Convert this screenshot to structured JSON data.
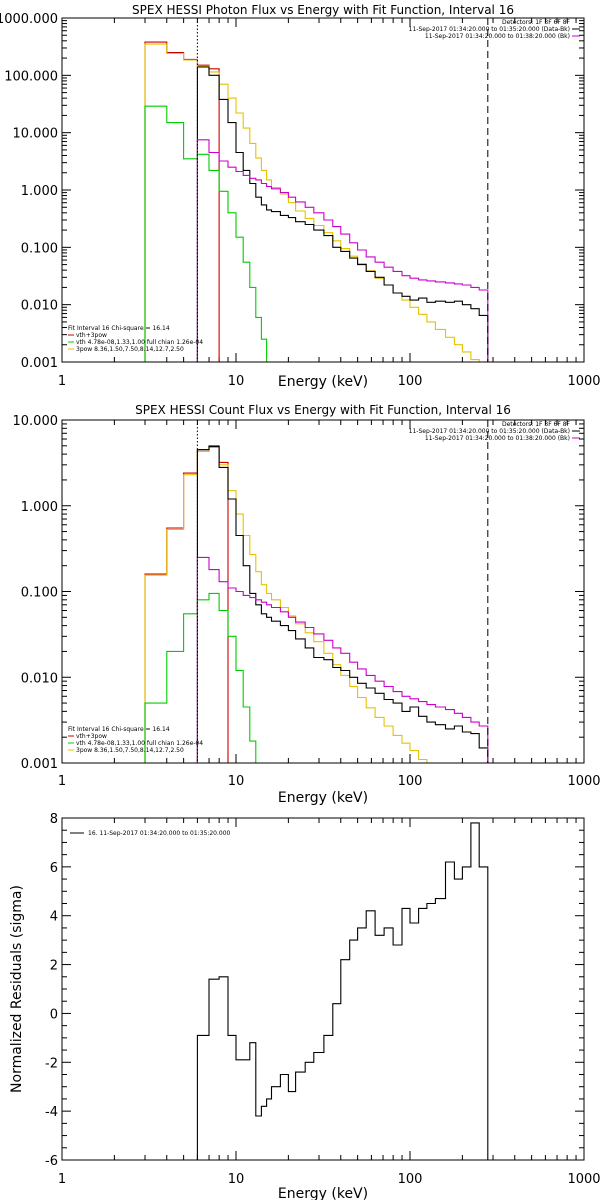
{
  "chart_data": [
    {
      "type": "line",
      "title": "SPEX HESSI Photon Flux vs Energy with Fit Function, Interval 16",
      "xlabel": "Energy (keV)",
      "ylabel": "",
      "xscale": "log",
      "yscale": "log",
      "xlim": [
        1,
        1000
      ],
      "ylim": [
        0.001,
        1000
      ],
      "xticks": [
        "1",
        "10",
        "100",
        "1000"
      ],
      "yticks": [
        "1000.000",
        "100.000",
        "10.000",
        "1.000",
        "0.100",
        "0.010",
        "0.001"
      ],
      "ytick_values": [
        1000,
        100,
        10,
        1,
        0.1,
        0.01,
        0.001
      ],
      "vlines": [
        {
          "x": 6,
          "style": "dotted"
        },
        {
          "x": 280,
          "style": "dashed"
        }
      ],
      "legend_top_right": [
        {
          "text": "Detectors: 1F 3F 6F 8F",
          "color": "#000000"
        },
        {
          "text": "11-Sep-2017 01:34:20.000 to 01:35:20.000 (Data-Bk)",
          "color": "#000000"
        },
        {
          "text": "11-Sep-2017 01:34:20.000 to 01:38:20.000 (Bk)",
          "color": "#cc00cc"
        }
      ],
      "legend_bottom_left": [
        {
          "text": "Fit Interval 16   Chi-square = 16.14",
          "color": "#000000"
        },
        {
          "text": "vth+3pow",
          "color": "#cc0000"
        },
        {
          "text": "vth 4.78e-08,1.33,1.00   full chian 1.26e-04",
          "color": "#00cc00"
        },
        {
          "text": "3pow 8.36,1.50,7.50,8.14,12.7,2.50",
          "color": "#e6c200"
        }
      ],
      "series": [
        {
          "name": "vth+3pow",
          "color": "#cc0000",
          "edges": [
            3,
            4,
            5,
            6,
            7,
            8
          ],
          "values": [
            380,
            250,
            190,
            150,
            130
          ]
        },
        {
          "name": "3pow 8.36,1.50,7.50,8.14,12.7,2.50",
          "color": "#e6c200",
          "edges": [
            3,
            4,
            5,
            6,
            7,
            8,
            9,
            10,
            11,
            12,
            13,
            14,
            15,
            16,
            18,
            20,
            22,
            25,
            28,
            32,
            36,
            40,
            45,
            50,
            56,
            63,
            71,
            80,
            90,
            100,
            112,
            125,
            140,
            160,
            180,
            200,
            224,
            250,
            280
          ],
          "values": [
            350,
            240,
            185,
            145,
            115,
            70,
            40,
            22,
            12,
            6.5,
            3.6,
            2.2,
            1.5,
            1.1,
            0.85,
            0.6,
            0.43,
            0.32,
            0.24,
            0.18,
            0.13,
            0.095,
            0.07,
            0.052,
            0.039,
            0.029,
            0.022,
            0.016,
            0.012,
            0.009,
            0.0068,
            0.005,
            0.0037,
            0.0027,
            0.002,
            0.0015,
            0.0011,
            0.0008
          ]
        },
        {
          "name": "vth 4.78e-08,1.33,1.00",
          "color": "#00cc00",
          "edges": [
            3,
            4,
            5,
            6,
            7,
            8,
            9,
            10,
            11,
            12,
            13,
            14,
            15
          ],
          "values": [
            29,
            15,
            3.5,
            4.2,
            2.2,
            0.95,
            0.4,
            0.15,
            0.055,
            0.02,
            0.006,
            0.0025
          ]
        },
        {
          "name": "11-Sep-2017 01:34:20.000 to 01:35:20.000 (Data-Bk)",
          "color": "#000000",
          "edges": [
            6,
            7,
            8,
            9,
            10,
            11,
            12,
            13,
            14,
            15,
            16,
            18,
            20,
            22,
            25,
            28,
            32,
            36,
            40,
            45,
            50,
            56,
            63,
            71,
            80,
            90,
            100,
            112,
            125,
            140,
            160,
            180,
            200,
            224,
            250,
            280
          ],
          "values": [
            140,
            100,
            38,
            15,
            4.5,
            2.2,
            1.3,
            0.75,
            0.55,
            0.45,
            0.42,
            0.36,
            0.33,
            0.28,
            0.25,
            0.2,
            0.16,
            0.1,
            0.085,
            0.065,
            0.05,
            0.038,
            0.03,
            0.022,
            0.016,
            0.014,
            0.012,
            0.013,
            0.011,
            0.0115,
            0.011,
            0.0115,
            0.01,
            0.0085,
            0.0065
          ]
        },
        {
          "name": "11-Sep-2017 01:34:20.000 to 01:38:20.000 (Bk)",
          "color": "#cc00cc",
          "edges": [
            6,
            7,
            8,
            9,
            10,
            11,
            12,
            13,
            14,
            15,
            16,
            18,
            20,
            22,
            25,
            28,
            32,
            36,
            40,
            45,
            50,
            56,
            63,
            71,
            80,
            90,
            100,
            112,
            125,
            140,
            160,
            180,
            200,
            224,
            250,
            280
          ],
          "values": [
            7.5,
            4.5,
            3.2,
            2.5,
            2.1,
            1.8,
            1.6,
            1.5,
            1.3,
            1.15,
            1.05,
            0.9,
            0.75,
            0.62,
            0.5,
            0.4,
            0.3,
            0.23,
            0.17,
            0.12,
            0.09,
            0.068,
            0.055,
            0.045,
            0.038,
            0.032,
            0.029,
            0.027,
            0.026,
            0.025,
            0.024,
            0.023,
            0.022,
            0.02,
            0.018
          ]
        }
      ]
    },
    {
      "type": "line",
      "title": "SPEX HESSI Count Flux vs Energy with Fit Function, Interval 16",
      "xlabel": "Energy (keV)",
      "ylabel": "",
      "xscale": "log",
      "yscale": "log",
      "xlim": [
        1,
        1000
      ],
      "ylim": [
        0.001,
        10
      ],
      "xticks": [
        "1",
        "10",
        "100",
        "1000"
      ],
      "yticks": [
        "10.000",
        "1.000",
        "0.100",
        "0.010",
        "0.001"
      ],
      "ytick_values": [
        10,
        1,
        0.1,
        0.01,
        0.001
      ],
      "vlines": [
        {
          "x": 6,
          "style": "dotted"
        },
        {
          "x": 280,
          "style": "dashed"
        }
      ],
      "legend_top_right": [
        {
          "text": "Detectors: 1F 3F 6F 8F",
          "color": "#000000"
        },
        {
          "text": "11-Sep-2017 01:34:20.000 to 01:35:20.000 (Data-Bk)",
          "color": "#000000"
        },
        {
          "text": "11-Sep-2017 01:34:20.000 to 01:38:20.000 (Bk)",
          "color": "#cc00cc"
        }
      ],
      "legend_bottom_left": [
        {
          "text": "Fit Interval 16   Chi-square = 16.14",
          "color": "#000000"
        },
        {
          "text": "vth+3pow",
          "color": "#cc0000"
        },
        {
          "text": "vth 4.78e-08,1.33,1.00   full chian 1.26e-04",
          "color": "#00cc00"
        },
        {
          "text": "3pow 8.36,1.50,7.50,8.14,12.7,2.50",
          "color": "#e6c200"
        }
      ],
      "series": [
        {
          "name": "vth+3pow",
          "color": "#cc0000",
          "edges": [
            3,
            4,
            5,
            6,
            7,
            8,
            9
          ],
          "values": [
            0.16,
            0.55,
            2.4,
            4.5,
            5.0,
            3.2
          ]
        },
        {
          "name": "3pow 8.36,1.50,7.50,8.14,12.7,2.50",
          "color": "#e6c200",
          "edges": [
            3,
            4,
            5,
            6,
            7,
            8,
            9,
            10,
            11,
            12,
            13,
            14,
            15,
            16,
            18,
            20,
            22,
            25,
            28,
            32,
            36,
            40,
            45,
            50,
            56,
            63,
            71,
            80,
            90,
            100,
            112,
            125,
            140
          ],
          "values": [
            0.155,
            0.53,
            2.3,
            4.3,
            4.8,
            3.0,
            1.5,
            0.8,
            0.45,
            0.27,
            0.17,
            0.12,
            0.095,
            0.08,
            0.065,
            0.052,
            0.042,
            0.033,
            0.026,
            0.019,
            0.014,
            0.0105,
            0.0078,
            0.0058,
            0.0044,
            0.0034,
            0.0027,
            0.0021,
            0.0017,
            0.0014,
            0.0011,
            0.00095
          ]
        },
        {
          "name": "vth 4.78e-08,1.33,1.00",
          "color": "#00cc00",
          "edges": [
            3,
            4,
            5,
            6,
            7,
            8,
            9,
            10,
            11,
            12,
            13,
            14
          ],
          "values": [
            0.005,
            0.02,
            0.055,
            0.08,
            0.095,
            0.06,
            0.03,
            0.012,
            0.0045,
            0.0018,
            0.0008
          ]
        },
        {
          "name": "11-Sep-2017 01:34:20.000 to 01:35:20.000 (Data-Bk)",
          "color": "#000000",
          "edges": [
            6,
            7,
            8,
            9,
            10,
            11,
            12,
            13,
            14,
            15,
            16,
            18,
            20,
            22,
            25,
            28,
            32,
            36,
            40,
            45,
            50,
            56,
            63,
            71,
            80,
            90,
            100,
            112,
            125,
            140,
            160,
            180,
            200,
            224,
            250,
            280
          ],
          "values": [
            4.5,
            4.9,
            2.8,
            1.2,
            0.45,
            0.2,
            0.095,
            0.07,
            0.055,
            0.05,
            0.045,
            0.04,
            0.035,
            0.028,
            0.022,
            0.017,
            0.016,
            0.013,
            0.012,
            0.01,
            0.0085,
            0.0075,
            0.0065,
            0.0055,
            0.005,
            0.004,
            0.0045,
            0.0035,
            0.003,
            0.0028,
            0.0025,
            0.0027,
            0.0023,
            0.0022,
            0.0015
          ]
        },
        {
          "name": "11-Sep-2017 01:34:20.000 to 01:38:20.000 (Bk)",
          "color": "#cc00cc",
          "edges": [
            6,
            7,
            8,
            9,
            10,
            11,
            12,
            13,
            14,
            15,
            16,
            18,
            20,
            22,
            25,
            28,
            32,
            36,
            40,
            45,
            50,
            56,
            63,
            71,
            80,
            90,
            100,
            112,
            125,
            140,
            160,
            180,
            200,
            224,
            250,
            280
          ],
          "values": [
            0.25,
            0.18,
            0.13,
            0.11,
            0.1,
            0.09,
            0.085,
            0.08,
            0.075,
            0.07,
            0.065,
            0.058,
            0.05,
            0.044,
            0.038,
            0.032,
            0.027,
            0.022,
            0.019,
            0.015,
            0.0125,
            0.0105,
            0.009,
            0.0078,
            0.0068,
            0.006,
            0.0056,
            0.0052,
            0.0048,
            0.0045,
            0.0042,
            0.0038,
            0.0034,
            0.003,
            0.0027
          ]
        }
      ]
    },
    {
      "type": "line",
      "title": "",
      "xlabel": "Energy (keV)",
      "ylabel": "Normalized Residuals (sigma)",
      "xscale": "log",
      "yscale": "linear",
      "xlim": [
        1,
        1000
      ],
      "ylim": [
        -6,
        8
      ],
      "xticks": [
        "1",
        "10",
        "100",
        "1000"
      ],
      "yticks": [
        "8",
        "6",
        "4",
        "2",
        "0",
        "-2",
        "-4",
        "-6"
      ],
      "ytick_values": [
        8,
        6,
        4,
        2,
        0,
        -2,
        -4,
        -6
      ],
      "legend_top_left": [
        {
          "text": "16. 11-Sep-2017 01:34:20.000 to 01:35:20.000",
          "color": "#000000"
        }
      ],
      "series": [
        {
          "name": "16. 11-Sep-2017 01:34:20.000 to 01:35:20.000",
          "color": "#000000",
          "edges": [
            6,
            7,
            8,
            9,
            10,
            11,
            12,
            13,
            14,
            15,
            16,
            18,
            20,
            22,
            25,
            28,
            32,
            36,
            40,
            45,
            50,
            56,
            63,
            71,
            80,
            90,
            100,
            112,
            125,
            140,
            160,
            180,
            200,
            224,
            250,
            280
          ],
          "values": [
            -0.9,
            1.4,
            1.5,
            -0.9,
            -1.9,
            -1.9,
            -1.2,
            -4.2,
            -3.8,
            -3.5,
            -3.0,
            -2.5,
            -3.2,
            -2.4,
            -2.0,
            -1.6,
            -0.9,
            0.4,
            2.2,
            3.0,
            3.5,
            4.2,
            3.2,
            3.5,
            2.8,
            4.3,
            3.7,
            4.3,
            4.5,
            4.7,
            6.2,
            5.5,
            6.0,
            7.8,
            6.0
          ]
        }
      ]
    }
  ]
}
